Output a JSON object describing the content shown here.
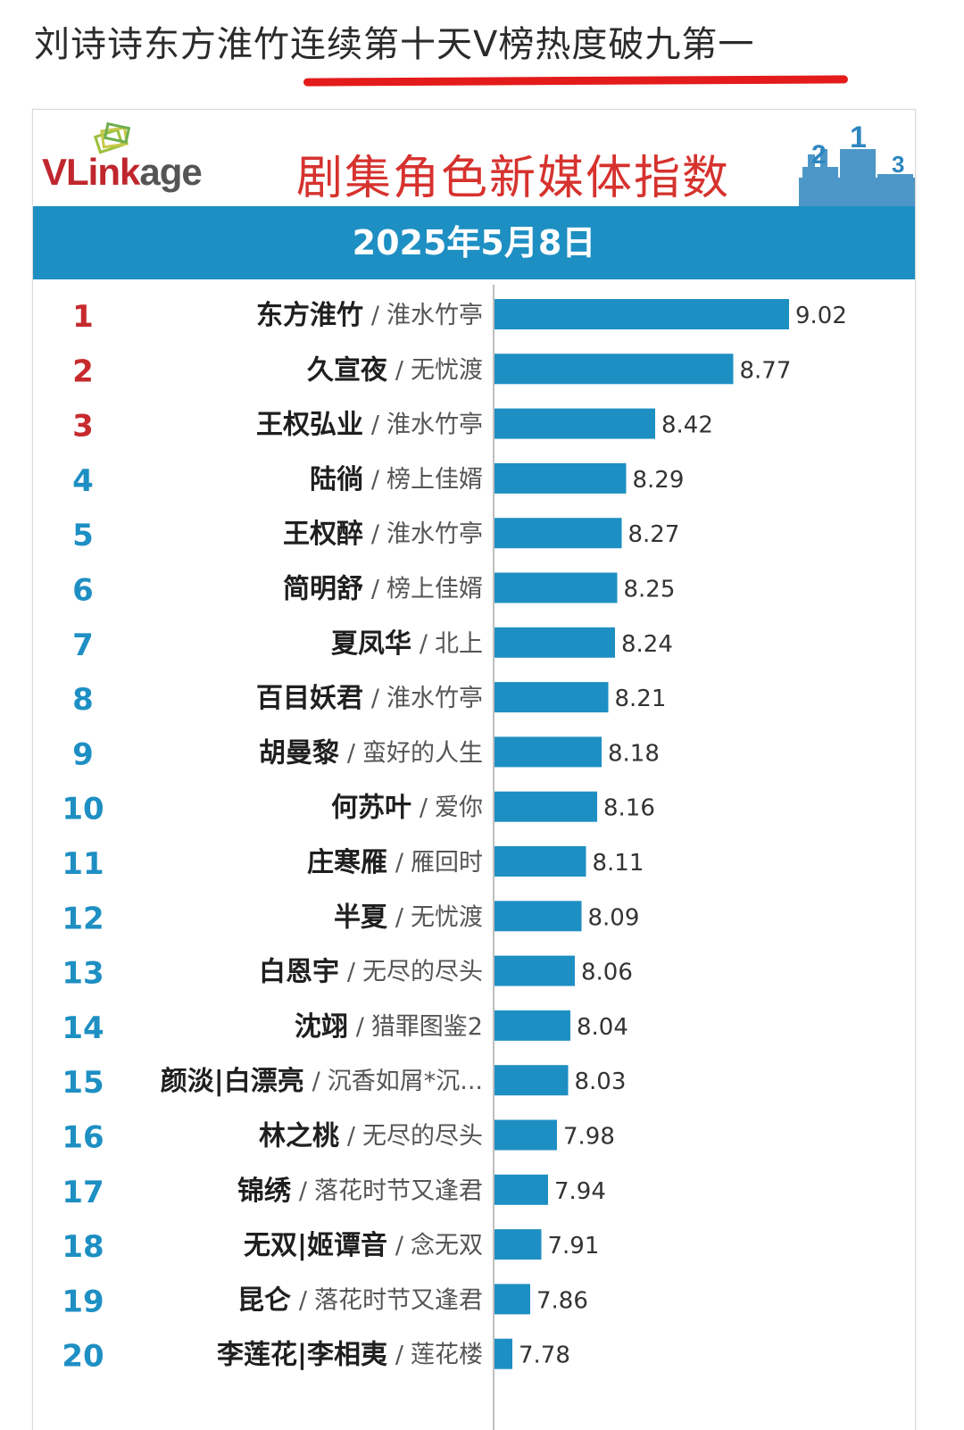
{
  "post": {
    "headline": "刘诗诗东方淮竹连续第十天V榜热度破九第一"
  },
  "brand": {
    "logo": "VLinkage",
    "logo_main": "VLink",
    "logo_tail": "age",
    "podium_icon": "podium-icon",
    "colors": {
      "accent_blue": "#1e8fc3",
      "title_red": "#d6322e",
      "underline_red": "#e41b1b",
      "top_rank_red": "#c72a2e"
    }
  },
  "chart_data": {
    "type": "bar",
    "orientation": "horizontal",
    "title": "剧集角色新媒体指数",
    "subtitle": "2025年5月8日",
    "ranks": [
      "1",
      "2",
      "3",
      "4",
      "5",
      "6",
      "7",
      "8",
      "9",
      "10",
      "11",
      "12",
      "13",
      "14",
      "15",
      "16",
      "17",
      "18",
      "19",
      "20"
    ],
    "categories": [
      "东方淮竹",
      "久宣夜",
      "王权弘业",
      "陆徜",
      "王权醉",
      "简明舒",
      "夏凤华",
      "百目妖君",
      "胡曼黎",
      "何苏叶",
      "庄寒雁",
      "半夏",
      "白恩宇",
      "沈翊",
      "颜淡|白漂亮",
      "林之桃",
      "锦绣",
      "无双|姬谭音",
      "昆仑",
      "李莲花|李相夷"
    ],
    "shows": [
      "淮水竹亭",
      "无忧渡",
      "淮水竹亭",
      "榜上佳婿",
      "淮水竹亭",
      "榜上佳婿",
      "北上",
      "淮水竹亭",
      "蛮好的人生",
      "爱你",
      "雁回时",
      "无忧渡",
      "无尽的尽头",
      "猎罪图鉴2",
      "沉香如屑*沉...",
      "无尽的尽头",
      "落花时节又逢君",
      "念无双",
      "落花时节又逢君",
      "莲花楼"
    ],
    "values": [
      9.02,
      8.77,
      8.42,
      8.29,
      8.27,
      8.25,
      8.24,
      8.21,
      8.18,
      8.16,
      8.11,
      8.09,
      8.06,
      8.04,
      8.03,
      7.98,
      7.94,
      7.91,
      7.86,
      7.78
    ],
    "value_labels": [
      "9.02",
      "8.77",
      "8.42",
      "8.29",
      "8.27",
      "8.25",
      "8.24",
      "8.21",
      "8.18",
      "8.16",
      "8.11",
      "8.09",
      "8.06",
      "8.04",
      "8.03",
      "7.98",
      "7.94",
      "7.91",
      "7.86",
      "7.78"
    ],
    "xlim": [
      7.7,
      9.02
    ],
    "grid": false,
    "legend": "none",
    "top_ranks_highlighted": 3
  }
}
